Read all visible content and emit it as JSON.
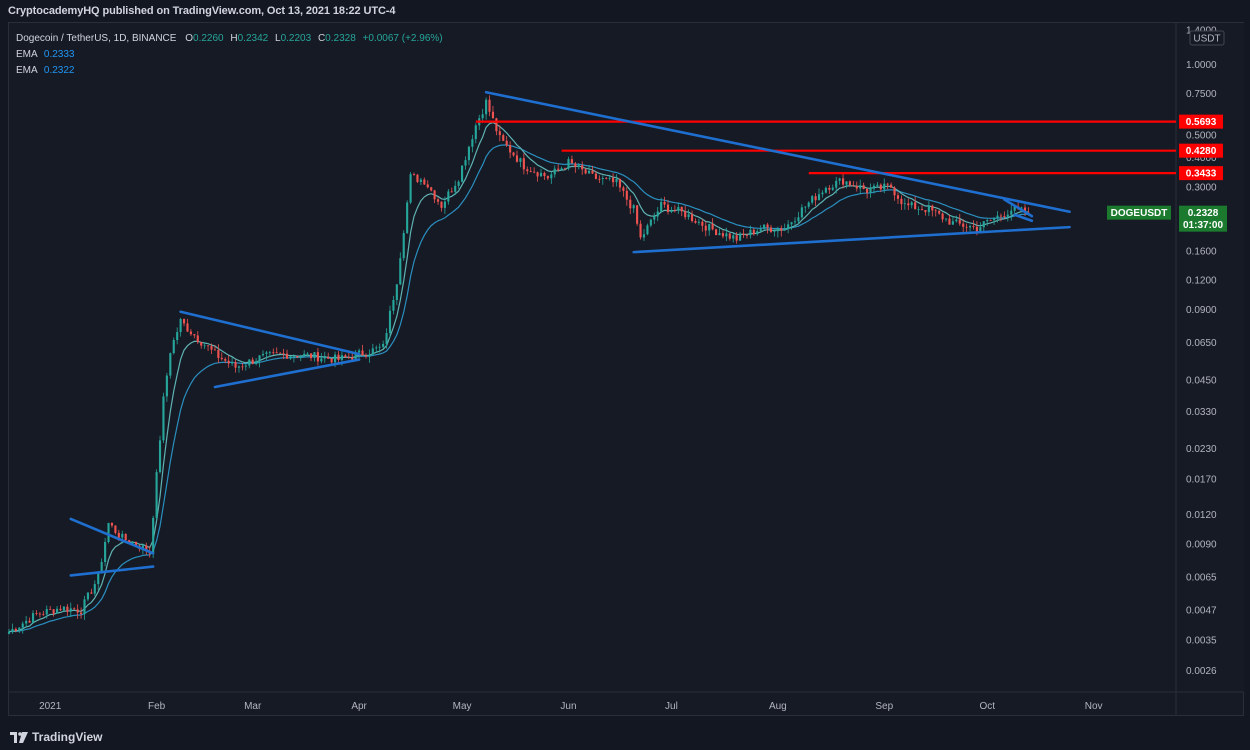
{
  "header": {
    "publish_line": "CryptocademyHQ published on TradingView.com, Oct 13, 2021 18:22 UTC-4"
  },
  "legend": {
    "symbol": "Dogecoin / TetherUS, 1D, BINANCE",
    "o_label": "O",
    "o": "0.2260",
    "h_label": "H",
    "h": "0.2342",
    "l_label": "L",
    "l": "0.2203",
    "c_label": "C",
    "c": "0.2328",
    "change": "+0.0067 (+2.96%)",
    "ema1_label": "EMA",
    "ema1": "0.2333",
    "ema2_label": "EMA",
    "ema2": "0.2322"
  },
  "footer": {
    "brand": "TradingView"
  },
  "colors": {
    "background": "#161a25",
    "up": "#26a69a",
    "down": "#ef5350",
    "trendline": "#1e6fd0",
    "resistance": "#ff0000",
    "ema_fast": "#5fb3b3",
    "ema_slow": "#2a8fbf",
    "price_tag": "#1b7a2e"
  },
  "chart_data": {
    "type": "candlestick",
    "title": "Dogecoin / TetherUS, 1D, BINANCE",
    "yscale": "log",
    "ylim": [
      0.0021,
      1.5
    ],
    "y_unit": "USDT",
    "y_ticks": [
      "1.4000",
      "1.0000",
      "0.7500",
      "0.5000",
      "0.4000",
      "0.3000",
      "0.1600",
      "0.1200",
      "0.0900",
      "0.0650",
      "0.0450",
      "0.0330",
      "0.0230",
      "0.0170",
      "0.0120",
      "0.0090",
      "0.0065",
      "0.0047",
      "0.0035",
      "0.0026"
    ],
    "x_ticks": [
      "2021",
      "Feb",
      "Mar",
      "Apr",
      "May",
      "Jun",
      "Jul",
      "Aug",
      "Sep",
      "Oct",
      "Nov"
    ],
    "x_range": [
      "2020-12-20",
      "2021-11-25"
    ],
    "price_series": [
      [
        "2020-12-20",
        0.0038
      ],
      [
        "2020-12-28",
        0.0045
      ],
      [
        "2021-01-04",
        0.0048
      ],
      [
        "2021-01-10",
        0.0047
      ],
      [
        "2021-01-15",
        0.0065
      ],
      [
        "2021-01-18",
        0.011
      ],
      [
        "2021-01-22",
        0.0095
      ],
      [
        "2021-01-26",
        0.009
      ],
      [
        "2021-01-30",
        0.0083
      ],
      [
        "2021-02-03",
        0.037
      ],
      [
        "2021-02-05",
        0.06
      ],
      [
        "2021-02-08",
        0.08
      ],
      [
        "2021-02-12",
        0.07
      ],
      [
        "2021-02-18",
        0.058
      ],
      [
        "2021-02-24",
        0.051
      ],
      [
        "2021-03-03",
        0.056
      ],
      [
        "2021-03-10",
        0.058
      ],
      [
        "2021-03-18",
        0.057
      ],
      [
        "2021-03-26",
        0.055
      ],
      [
        "2021-04-01",
        0.058
      ],
      [
        "2021-04-08",
        0.062
      ],
      [
        "2021-04-12",
        0.12
      ],
      [
        "2021-04-16",
        0.33
      ],
      [
        "2021-04-20",
        0.32
      ],
      [
        "2021-04-25",
        0.25
      ],
      [
        "2021-04-30",
        0.33
      ],
      [
        "2021-05-05",
        0.55
      ],
      [
        "2021-05-08",
        0.69
      ],
      [
        "2021-05-12",
        0.48
      ],
      [
        "2021-05-19",
        0.37
      ],
      [
        "2021-05-26",
        0.33
      ],
      [
        "2021-06-01",
        0.38
      ],
      [
        "2021-06-08",
        0.33
      ],
      [
        "2021-06-15",
        0.31
      ],
      [
        "2021-06-20",
        0.24
      ],
      [
        "2021-06-22",
        0.18
      ],
      [
        "2021-06-28",
        0.25
      ],
      [
        "2021-07-05",
        0.23
      ],
      [
        "2021-07-12",
        0.2
      ],
      [
        "2021-07-20",
        0.18
      ],
      [
        "2021-07-27",
        0.2
      ],
      [
        "2021-08-03",
        0.2
      ],
      [
        "2021-08-08",
        0.24
      ],
      [
        "2021-08-15",
        0.3
      ],
      [
        "2021-08-20",
        0.32
      ],
      [
        "2021-08-27",
        0.29
      ],
      [
        "2021-09-03",
        0.3
      ],
      [
        "2021-09-07",
        0.25
      ],
      [
        "2021-09-14",
        0.24
      ],
      [
        "2021-09-21",
        0.21
      ],
      [
        "2021-09-28",
        0.2
      ],
      [
        "2021-10-03",
        0.22
      ],
      [
        "2021-10-08",
        0.24
      ],
      [
        "2021-10-13",
        0.2328
      ]
    ],
    "emas": [
      {
        "name": "EMA",
        "last": 0.2333
      },
      {
        "name": "EMA",
        "last": 0.2322
      }
    ],
    "horizontal_levels": [
      0.5693,
      0.428,
      0.3433
    ],
    "trendlines": [
      {
        "from": [
          "2021-01-07",
          0.0115
        ],
        "to": [
          "2021-01-31",
          0.0082
        ]
      },
      {
        "from": [
          "2021-01-07",
          0.0066
        ],
        "to": [
          "2021-01-31",
          0.0072
        ]
      },
      {
        "from": [
          "2021-02-08",
          0.088
        ],
        "to": [
          "2021-04-01",
          0.058
        ]
      },
      {
        "from": [
          "2021-02-18",
          0.042
        ],
        "to": [
          "2021-04-01",
          0.055
        ]
      },
      {
        "from": [
          "2021-05-08",
          0.76
        ],
        "to": [
          "2021-10-25",
          0.235
        ]
      },
      {
        "from": [
          "2021-06-20",
          0.158
        ],
        "to": [
          "2021-10-25",
          0.202
        ]
      },
      {
        "from": [
          "2021-10-06",
          0.265
        ],
        "to": [
          "2021-10-14",
          0.225
        ]
      },
      {
        "from": [
          "2021-10-09",
          0.228
        ],
        "to": [
          "2021-10-14",
          0.215
        ]
      }
    ],
    "last_price": {
      "label": "DOGEUSDT",
      "value": "0.2328",
      "countdown": "01:37:00"
    }
  }
}
